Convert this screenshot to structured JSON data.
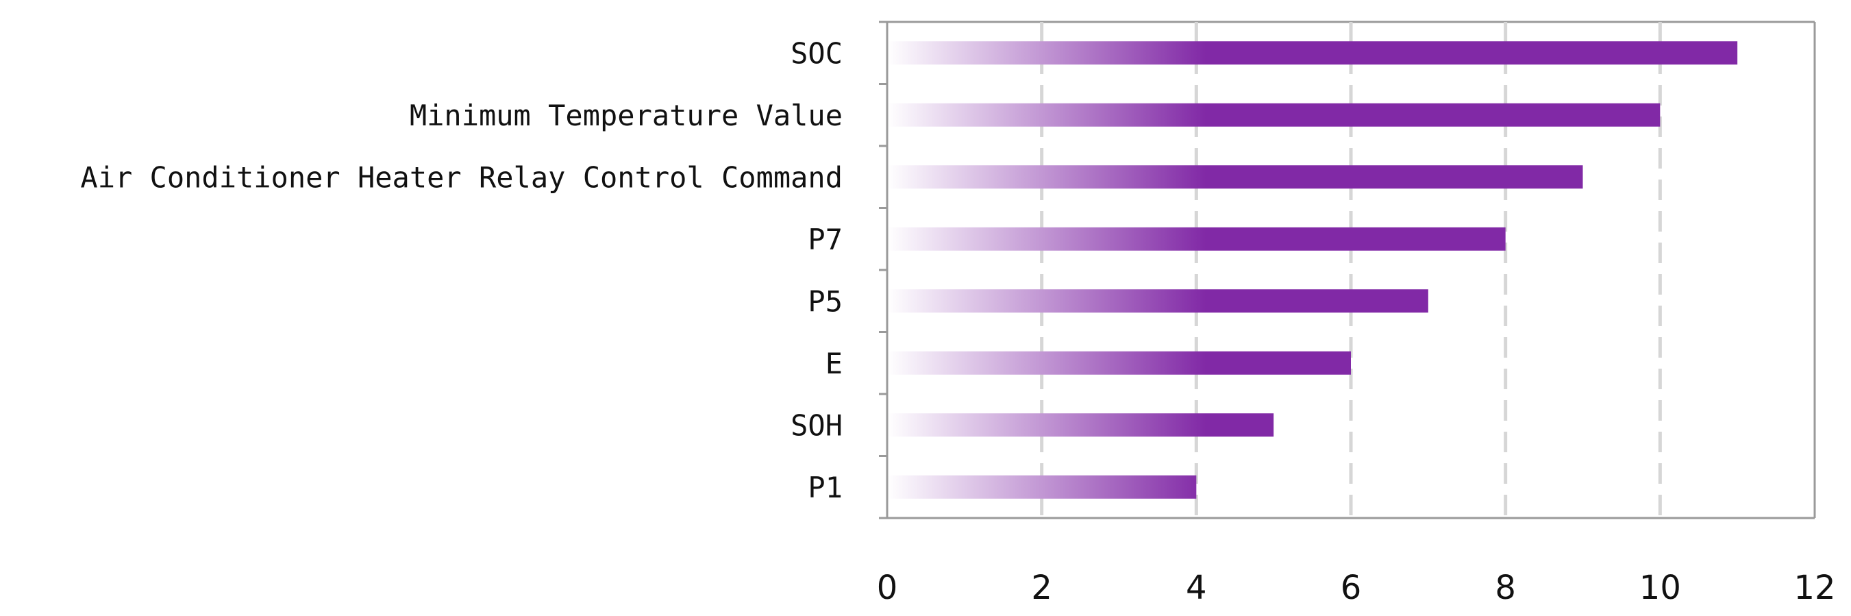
{
  "chart_data": {
    "type": "bar",
    "orientation": "horizontal",
    "title": "",
    "xlabel": "",
    "ylabel": "",
    "categories": [
      "SOC",
      "Minimum Temperature Value",
      "Air Conditioner Heater Relay Control Command",
      "P7",
      "P5",
      "E",
      "SOH",
      "P1"
    ],
    "values": [
      11,
      10,
      9,
      8,
      7,
      6,
      5,
      4
    ],
    "xlim": [
      0,
      12
    ],
    "xticks": [
      0,
      2,
      4,
      6,
      8,
      10,
      12
    ],
    "grid": "vertical dashed",
    "legend": "none",
    "bar_color": "#8129A6",
    "gradient_start": "#FFFFFF"
  }
}
